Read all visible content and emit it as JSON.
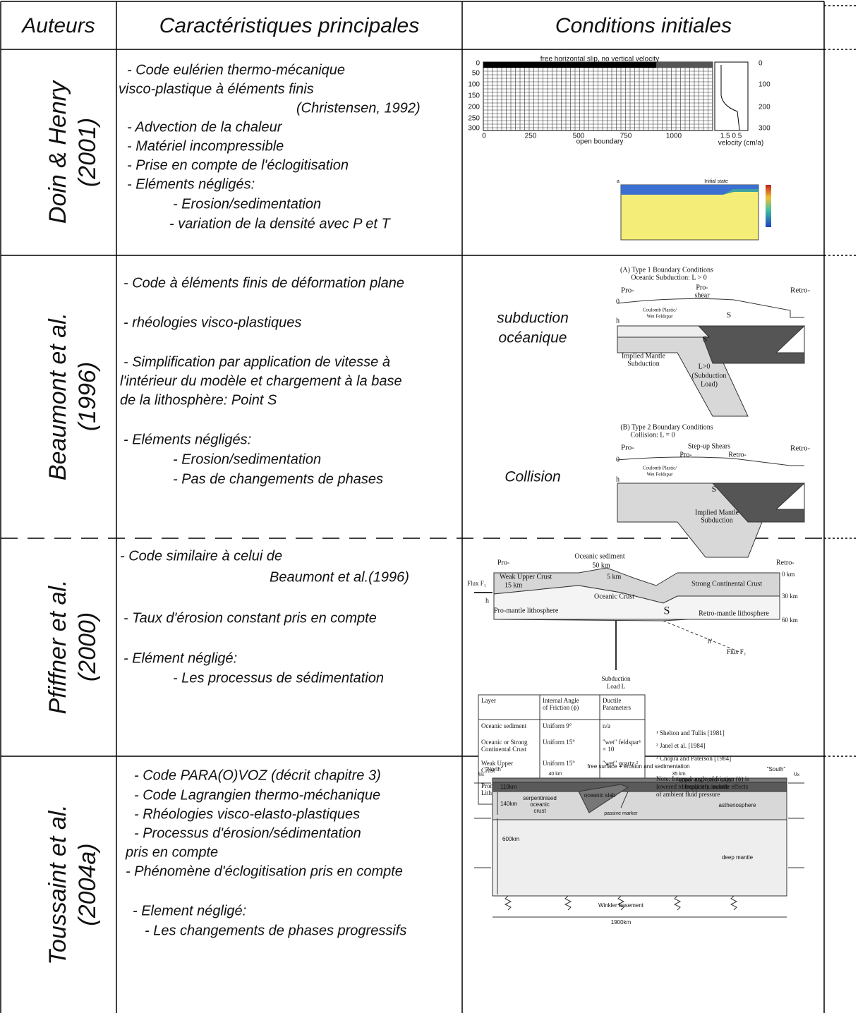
{
  "header": {
    "authors": "Auteurs",
    "characteristics": "Caractéristiques principales",
    "conditions": "Conditions initiales"
  },
  "rows": [
    {
      "author": [
        "Doin & Henry",
        "(2001)"
      ],
      "lines": [
        "- Code eulérien thermo-mécanique",
        "visco-plastique à éléments finis",
        "(Christensen, 1992)",
        "- Advection de la chaleur",
        "- Matériel incompressible",
        "- Prise en compte de l'éclogitisation",
        "- Eléments négligés:",
        "- Erosion/sedimentation",
        "- variation de la densité avec P et T"
      ],
      "figures": [
        {
          "texts": [
            "free horizontal slip, no vertical velocity",
            0,
            50,
            100,
            150,
            200,
            250,
            300,
            0,
            250,
            500,
            750,
            1000,
            "open boundary",
            0,
            100,
            200,
            300,
            "1.5 0.5",
            "velocity (cm/a)"
          ]
        },
        {
          "texts": [
            "a",
            "Initial state"
          ]
        }
      ]
    },
    {
      "author": [
        "Beaumont et al.",
        "(1996)"
      ],
      "lines": [
        "- Code à éléments finis de déformation plane",
        "- rhéologies visco-plastiques",
        "- Simplification par application de vitesse à",
        "l'intérieur du modèle et chargement à la base",
        "de la lithosphère: Point S",
        "- Eléments négligés:",
        "- Erosion/sedimentation",
        "- Pas de changements de phases"
      ],
      "labels": [
        "subduction",
        "océanique",
        "Collision"
      ],
      "figures": [
        {
          "texts": [
            "(A) Type 1 Boundary Conditions",
            "Oceanic Subduction:  L > 0",
            "Pro-",
            "Pro-",
            "shear",
            "Retro-",
            "Coulomb Plastic/",
            "Wet Feldspar",
            "S",
            "S'",
            "Implied Mantle",
            "Subduction",
            "L>0",
            "(Subduction",
            "Load)",
            "h",
            0
          ]
        },
        {
          "texts": [
            "(B) Type 2 Boundary Conditions",
            "Collision:  L = 0",
            "Pro-",
            "Step-up Shears",
            "Pro-",
            "Retro-",
            "Retro-",
            "Coulomb Plastic/",
            "Wet Feldspar",
            "S",
            "Implied Mantle",
            "Subduction",
            "h",
            0
          ]
        }
      ]
    },
    {
      "author": [
        "Pfiffner et al.",
        "(2000)"
      ],
      "lines": [
        "- Code similaire à celui de",
        "Beaumont et al.(1996)",
        "- Taux d'érosion constant pris en compte",
        "- Elément négligé:",
        "- Les processus de sédimentation"
      ],
      "figures": [
        {
          "texts": [
            "Pro-",
            "Oceanic sediment",
            "50 km",
            "Retro-",
            "Weak Upper Crust",
            "15 km",
            "5 km",
            "Strong Continental Crust",
            "0 km",
            "Oceanic Crust",
            "30 km",
            "Pro-mantle lithosphere",
            "Retro-mantle lithosphere",
            "60 km",
            "S",
            "Flux F₁",
            "h",
            "Flux F₂",
            "Subduction",
            "Load L",
            "h'"
          ]
        }
      ],
      "table": {
        "header": [
          [
            "Layer"
          ],
          [
            "Internal Angle",
            "of Friction (ϕ)"
          ],
          [
            "Ductile",
            "Parameters"
          ]
        ],
        "rows": [
          [
            [
              "Oceanic sediment"
            ],
            [
              "Uniform 9°"
            ],
            [
              "n/a"
            ]
          ],
          [
            [
              "Oceanic or Strong",
              "Continental Crust"
            ],
            [
              "Uniform 15°"
            ],
            [
              "\"wet\" feldspar¹",
              "× 10"
            ]
          ],
          [
            [
              "Weak Upper",
              "Crust"
            ],
            [
              "Uniform 15°"
            ],
            [
              "\"wet\" quartz ²"
            ]
          ],
          [
            [
              "Promande",
              "Lithosphere"
            ],
            [
              "Uniform 15°"
            ],
            [
              "\"wet\" olivine ³"
            ]
          ]
        ]
      },
      "notes": [
        "¹ Shelton and Tullis [1981]",
        "² Janel et al. [1984]",
        "³ Chopra and Paterson [1984]",
        "Note: Internal angle of friction (ϕ) is",
        "lowered to implicitly include effects",
        "of ambient fluid pressure"
      ]
    },
    {
      "author": [
        "Toussaint et al.",
        "(2004a)"
      ],
      "lines": [
        "- Code PARA(O)VOZ (décrit chapitre 3)",
        "- Code Lagrangien thermo-méchanique",
        "- Rhéologies visco-elasto-plastiques",
        "- Processus d'érosion/sédimentation",
        "pris en compte",
        "- Phénomène d'éclogitisation pris en compte",
        "- Element négligé:",
        "- Les changements de phases progressifs"
      ],
      "figures": [
        {
          "texts": [
            "\"North\"",
            "free surface + erosion and sedimentation",
            "\"South\"",
            "40 km",
            "35 km",
            "upper and lower crust",
            "lithospheric mantle",
            "110km",
            "140km",
            "serpentinised",
            "oceanic",
            "crust",
            "oceanic slab",
            "passive marker",
            "asthenosphere",
            "600km",
            "deep mantle",
            "Winkler basement",
            "1900km",
            "uₓ",
            "uₓ"
          ]
        }
      ]
    }
  ]
}
